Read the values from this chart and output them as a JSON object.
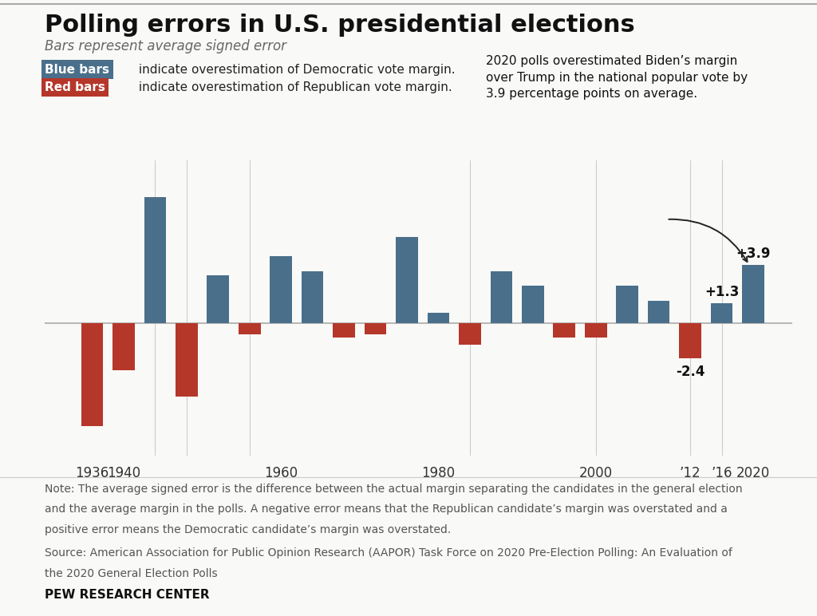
{
  "years": [
    1936,
    1940,
    1944,
    1948,
    1952,
    1956,
    1960,
    1964,
    1968,
    1972,
    1976,
    1980,
    1984,
    1988,
    1992,
    1996,
    2000,
    2004,
    2008,
    2012,
    2016,
    2020
  ],
  "values": [
    -7.0,
    -3.2,
    8.5,
    -5.0,
    3.2,
    -0.8,
    4.5,
    3.5,
    -1.0,
    -0.8,
    5.8,
    0.7,
    -1.5,
    3.5,
    2.5,
    -1.0,
    -1.0,
    2.5,
    1.5,
    -2.4,
    1.3,
    3.9
  ],
  "blue_color": "#4a6f8a",
  "red_color": "#b5372a",
  "background_color": "#f9f9f7",
  "title": "Polling errors in U.S. presidential elections",
  "subtitle": "Bars represent average signed error",
  "annotation_text": "2020 polls overestimated Biden’s margin\nover Trump in the national popular vote by\n3.9 percentage points on average.",
  "labeled_years": [
    2012,
    2016,
    2020
  ],
  "labeled_values": [
    -2.4,
    1.3,
    3.9
  ],
  "labeled_texts": [
    "-2.4",
    "+1.3",
    "+3.9"
  ],
  "note_line1": "Note: The average signed error is the difference between the actual margin separating the candidates in the general election",
  "note_line2": "and the average margin in the polls. A negative error means that the Republican candidate’s margin was overstated and a",
  "note_line3": "positive error means the Democratic candidate’s margin was overstated.",
  "source_line1": "Source: American Association for Public Opinion Research (AAPOR) Task Force on 2020 Pre-Election Polling: An Evaluation of",
  "source_line2": "the 2020 General Election Polls",
  "branding": "PEW RESEARCH CENTER",
  "ylim": [
    -9,
    11
  ],
  "xlim": [
    1930,
    2025
  ],
  "tick_years": [
    1936,
    1940,
    1944,
    1960,
    1980,
    2000,
    2012,
    2016,
    2020
  ],
  "tick_labels": [
    "1936",
    "1940",
    "",
    "1960",
    "1980",
    "2000",
    "’12",
    "’16",
    "2020"
  ],
  "vline_years": [
    1944,
    1948,
    1956,
    1984,
    2000,
    2012,
    2016
  ],
  "bar_width": 2.8,
  "title_fontsize": 22,
  "subtitle_fontsize": 12,
  "legend_fontsize": 11,
  "tick_fontsize": 12,
  "label_fontsize": 12,
  "annot_fontsize": 11,
  "note_fontsize": 10,
  "brand_fontsize": 11
}
